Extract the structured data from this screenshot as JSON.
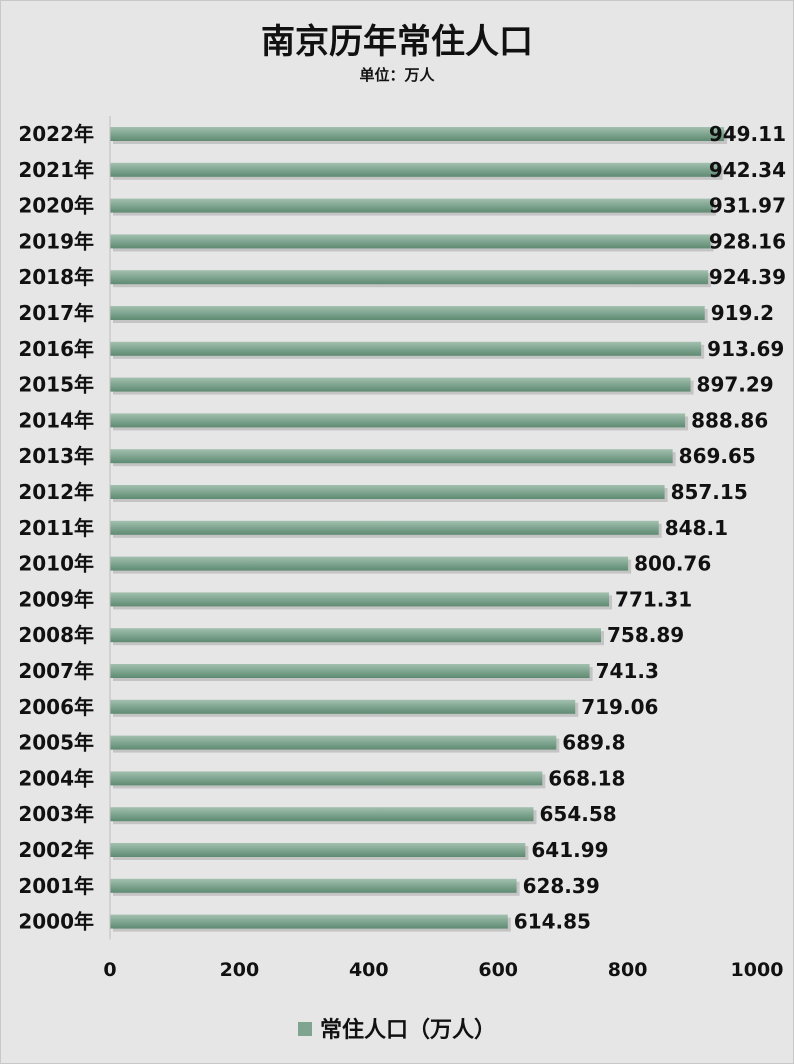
{
  "chart_data": {
    "type": "bar",
    "orientation": "horizontal",
    "title": "南京历年常住人口",
    "subtitle": "单位：万人",
    "categories": [
      "2022年",
      "2021年",
      "2020年",
      "2019年",
      "2018年",
      "2017年",
      "2016年",
      "2015年",
      "2014年",
      "2013年",
      "2012年",
      "2011年",
      "2010年",
      "2009年",
      "2008年",
      "2007年",
      "2006年",
      "2005年",
      "2004年",
      "2003年",
      "2002年",
      "2001年",
      "2000年"
    ],
    "series": [
      {
        "name": "常住人口（万人）",
        "values": [
          949.11,
          942.34,
          931.97,
          928.16,
          924.39,
          919.2,
          913.69,
          897.29,
          888.86,
          869.65,
          857.15,
          848.1,
          800.76,
          771.31,
          758.89,
          741.3,
          719.06,
          689.8,
          668.18,
          654.58,
          641.99,
          628.39,
          614.85
        ]
      }
    ],
    "value_labels": [
      "949.11",
      "942.34",
      "931.97",
      "928.16",
      "924.39",
      "919.2",
      "913.69",
      "897.29",
      "888.86",
      "869.65",
      "857.15",
      "848.1",
      "800.76",
      "771.31",
      "758.89",
      "741.3",
      "719.06",
      "689.8",
      "668.18",
      "654.58",
      "641.99",
      "628.39",
      "614.85"
    ],
    "xlim": [
      0,
      1000
    ],
    "xticks": [
      "0",
      "200",
      "400",
      "600",
      "800",
      "1000"
    ],
    "grid": false,
    "legend_position": "bottom",
    "bar_color": "#7fa590"
  }
}
